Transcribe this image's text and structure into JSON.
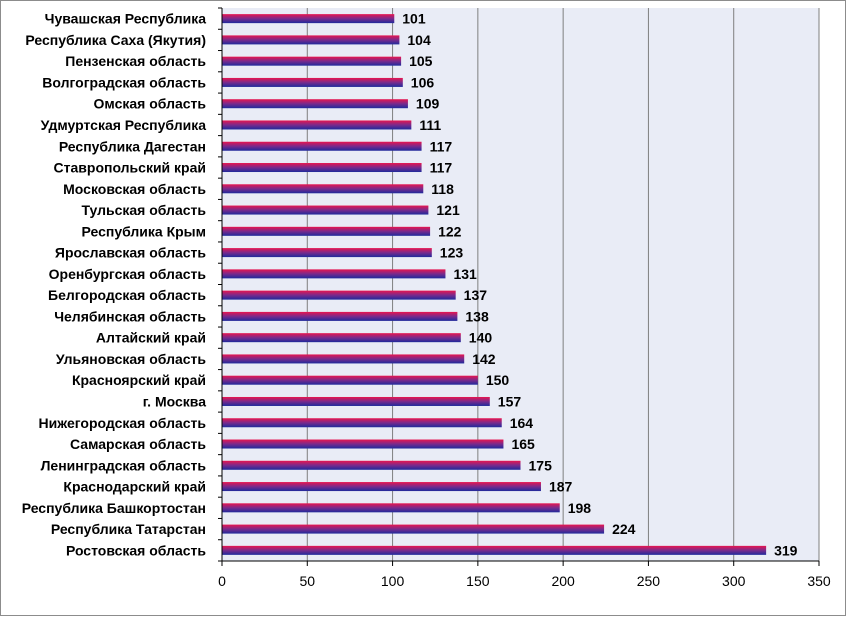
{
  "chart_data": {
    "type": "bar",
    "orientation": "horizontal",
    "title": "",
    "xlabel": "",
    "ylabel": "",
    "xlim": [
      0,
      350
    ],
    "x_ticks": [
      0,
      50,
      100,
      150,
      200,
      250,
      300,
      350
    ],
    "grid": "vertical",
    "legend": "none",
    "colors": {
      "bar_top": "#e8154f",
      "bar_mid": "#7a2a8c",
      "bar_bottom": "#1f2a9c",
      "plot_bg": "#e9ecf6",
      "grid": "#7f7f7f"
    },
    "categories": [
      "Чувашская Республика",
      "Республика Саха (Якутия)",
      "Пензенская область",
      "Волгоградская область",
      "Омская область",
      "Удмуртская Республика",
      "Республика Дагестан",
      "Ставропольский край",
      "Московская область",
      "Тульская область",
      "Республика Крым",
      "Ярославская область",
      "Оренбургская область",
      "Белгородская область",
      "Челябинская область",
      "Алтайский край",
      "Ульяновская область",
      "Красноярский край",
      "г. Москва",
      "Нижегородская область",
      "Самарская область",
      "Ленинградская область",
      "Краснодарский край",
      "Республика Башкортостан",
      "Республика Татарстан",
      "Ростовская область"
    ],
    "values": [
      101,
      104,
      105,
      106,
      109,
      111,
      117,
      117,
      118,
      121,
      122,
      123,
      131,
      137,
      138,
      140,
      142,
      150,
      157,
      164,
      165,
      175,
      187,
      198,
      224,
      319
    ]
  }
}
